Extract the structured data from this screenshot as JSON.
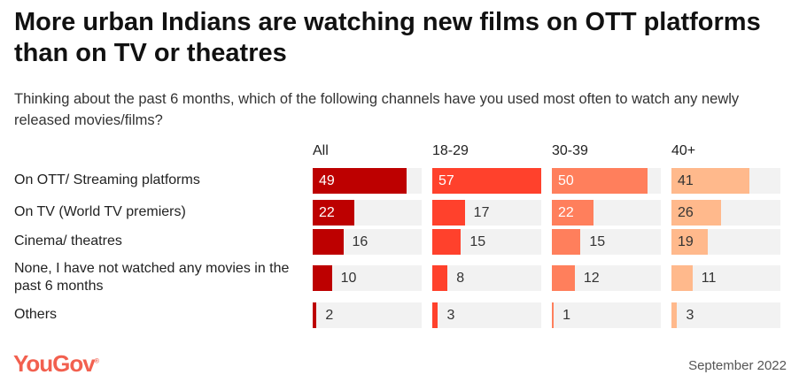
{
  "title": "More urban Indians are watching new films on OTT platforms than on TV or theatres",
  "subtitle": "Thinking about the past 6 months, which of the following channels have you used most often to watch any newly released movies/films?",
  "logo": "YouGov",
  "date": "September 2022",
  "chart_data": {
    "type": "bar",
    "categories": [
      "On OTT/ Streaming platforms",
      "On TV (World TV premiers)",
      "Cinema/ theatres",
      "None, I have not watched any movies in the past 6 months",
      "Others"
    ],
    "series": [
      {
        "name": "All",
        "color": "#bd0000",
        "text": "#ffffff",
        "values": [
          49,
          22,
          16,
          10,
          2
        ]
      },
      {
        "name": "18-29",
        "color": "#ff412c",
        "text": "#ffffff",
        "values": [
          57,
          17,
          15,
          8,
          3
        ]
      },
      {
        "name": "30-39",
        "color": "#ff7f5c",
        "text": "#ffffff",
        "values": [
          50,
          22,
          15,
          12,
          1
        ]
      },
      {
        "name": "40+",
        "color": "#ffb98c",
        "text": "#333333",
        "values": [
          41,
          26,
          19,
          11,
          3
        ]
      }
    ],
    "xlim": [
      0,
      57
    ]
  }
}
